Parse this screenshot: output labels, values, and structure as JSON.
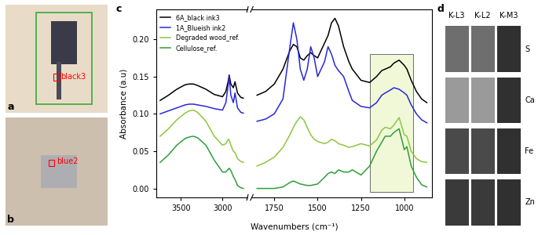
{
  "chart_data": [
    {
      "type": "line",
      "ylabel": "Absorbance (a.u)",
      "xlabel": "Wavenumbers (cm⁻¹)",
      "xlim": [
        3800,
        2700
      ],
      "xticks": [
        3500,
        3000
      ],
      "ylim": [
        -0.012,
        0.24
      ],
      "yticks": [
        {
          "value": 0.0,
          "label": "0.00"
        },
        {
          "value": 0.05,
          "label": "0.05"
        },
        {
          "value": 0.1,
          "label": "0.10"
        },
        {
          "value": 0.15,
          "label": "0.15"
        },
        {
          "value": 0.2,
          "label": "0.20"
        }
      ],
      "legend": "upper left",
      "x": [
        3750,
        3650,
        3550,
        3450,
        3400,
        3350,
        3300,
        3200,
        3100,
        3000,
        2960,
        2930,
        2920,
        2900,
        2870,
        2850,
        2820,
        2780,
        2750
      ],
      "series": [
        {
          "name": "6A_black ink3",
          "color": "#000000",
          "values": [
            0.118,
            0.125,
            0.133,
            0.139,
            0.14,
            0.14,
            0.138,
            0.133,
            0.126,
            0.123,
            0.13,
            0.145,
            0.152,
            0.14,
            0.135,
            0.143,
            0.128,
            0.122,
            0.121
          ]
        },
        {
          "name": "1A_Blueish ink2",
          "color": "#2828d8",
          "values": [
            0.1,
            0.104,
            0.108,
            0.112,
            0.113,
            0.113,
            0.112,
            0.11,
            0.107,
            0.105,
            0.115,
            0.14,
            0.15,
            0.125,
            0.115,
            0.128,
            0.108,
            0.102,
            0.101
          ]
        },
        {
          "name": "Degraded wood_ref.",
          "color": "#8dc63f",
          "values": [
            0.07,
            0.08,
            0.092,
            0.101,
            0.104,
            0.105,
            0.102,
            0.09,
            0.07,
            0.058,
            0.06,
            0.066,
            0.065,
            0.058,
            0.05,
            0.048,
            0.04,
            0.036,
            0.035
          ]
        },
        {
          "name": "Cellulose_ref.",
          "color": "#2e9e3a",
          "values": [
            0.035,
            0.045,
            0.058,
            0.067,
            0.069,
            0.07,
            0.068,
            0.058,
            0.038,
            0.022,
            0.022,
            0.026,
            0.027,
            0.024,
            0.016,
            0.012,
            0.004,
            0.001,
            0.0
          ]
        }
      ]
    },
    {
      "type": "line",
      "tick_labels": "x",
      "xlim": [
        1880,
        840
      ],
      "xticks": [
        1750,
        1500,
        1250,
        1000
      ],
      "ylim": [
        -0.012,
        0.24
      ],
      "shaded_range": {
        "x": [
          1200,
          950
        ],
        "y": [
          -0.005,
          0.18
        ]
      },
      "x": [
        1850,
        1800,
        1750,
        1700,
        1660,
        1640,
        1620,
        1600,
        1580,
        1560,
        1540,
        1520,
        1500,
        1460,
        1440,
        1420,
        1400,
        1380,
        1350,
        1320,
        1300,
        1250,
        1200,
        1160,
        1130,
        1110,
        1080,
        1060,
        1030,
        1000,
        985,
        960,
        930,
        900,
        870
      ],
      "series": [
        {
          "name": "6A_black ink3",
          "color": "#000000",
          "values": [
            0.125,
            0.13,
            0.14,
            0.16,
            0.185,
            0.193,
            0.19,
            0.175,
            0.172,
            0.178,
            0.182,
            0.178,
            0.175,
            0.195,
            0.205,
            0.222,
            0.228,
            0.218,
            0.19,
            0.17,
            0.16,
            0.145,
            0.142,
            0.15,
            0.158,
            0.16,
            0.163,
            0.168,
            0.172,
            0.165,
            0.16,
            0.145,
            0.13,
            0.12,
            0.115
          ]
        },
        {
          "name": "1A_Blueish ink2",
          "color": "#2828d8",
          "values": [
            0.09,
            0.093,
            0.1,
            0.12,
            0.19,
            0.222,
            0.2,
            0.16,
            0.145,
            0.16,
            0.19,
            0.175,
            0.15,
            0.17,
            0.19,
            0.18,
            0.165,
            0.158,
            0.15,
            0.13,
            0.118,
            0.11,
            0.108,
            0.115,
            0.125,
            0.128,
            0.132,
            0.135,
            0.133,
            0.128,
            0.125,
            0.112,
            0.1,
            0.092,
            0.088
          ]
        },
        {
          "name": "Degraded wood_ref.",
          "color": "#8dc63f",
          "values": [
            0.03,
            0.035,
            0.042,
            0.055,
            0.072,
            0.082,
            0.09,
            0.096,
            0.092,
            0.082,
            0.072,
            0.066,
            0.063,
            0.06,
            0.062,
            0.066,
            0.064,
            0.06,
            0.058,
            0.055,
            0.056,
            0.06,
            0.057,
            0.065,
            0.078,
            0.082,
            0.08,
            0.085,
            0.095,
            0.072,
            0.07,
            0.05,
            0.04,
            0.036,
            0.035
          ]
        },
        {
          "name": "Cellulose_ref.",
          "color": "#2e9e3a",
          "values": [
            0.0,
            0.0,
            0.0,
            0.002,
            0.008,
            0.01,
            0.008,
            0.006,
            0.005,
            0.004,
            0.004,
            0.005,
            0.006,
            0.015,
            0.02,
            0.022,
            0.02,
            0.025,
            0.022,
            0.022,
            0.025,
            0.018,
            0.03,
            0.05,
            0.062,
            0.07,
            0.07,
            0.075,
            0.08,
            0.052,
            0.056,
            0.03,
            0.015,
            0.005,
            0.002
          ]
        }
      ]
    }
  ],
  "panel_labels": [
    "a",
    "b",
    "c",
    "d"
  ],
  "photos": [
    {
      "annotation": "black3"
    },
    {
      "annotation": "blue2"
    }
  ],
  "maps": {
    "columns": [
      "K-L3",
      "K-L2",
      "K-M3"
    ],
    "rows": [
      "S",
      "Ca",
      "Fe",
      "Zn"
    ]
  }
}
